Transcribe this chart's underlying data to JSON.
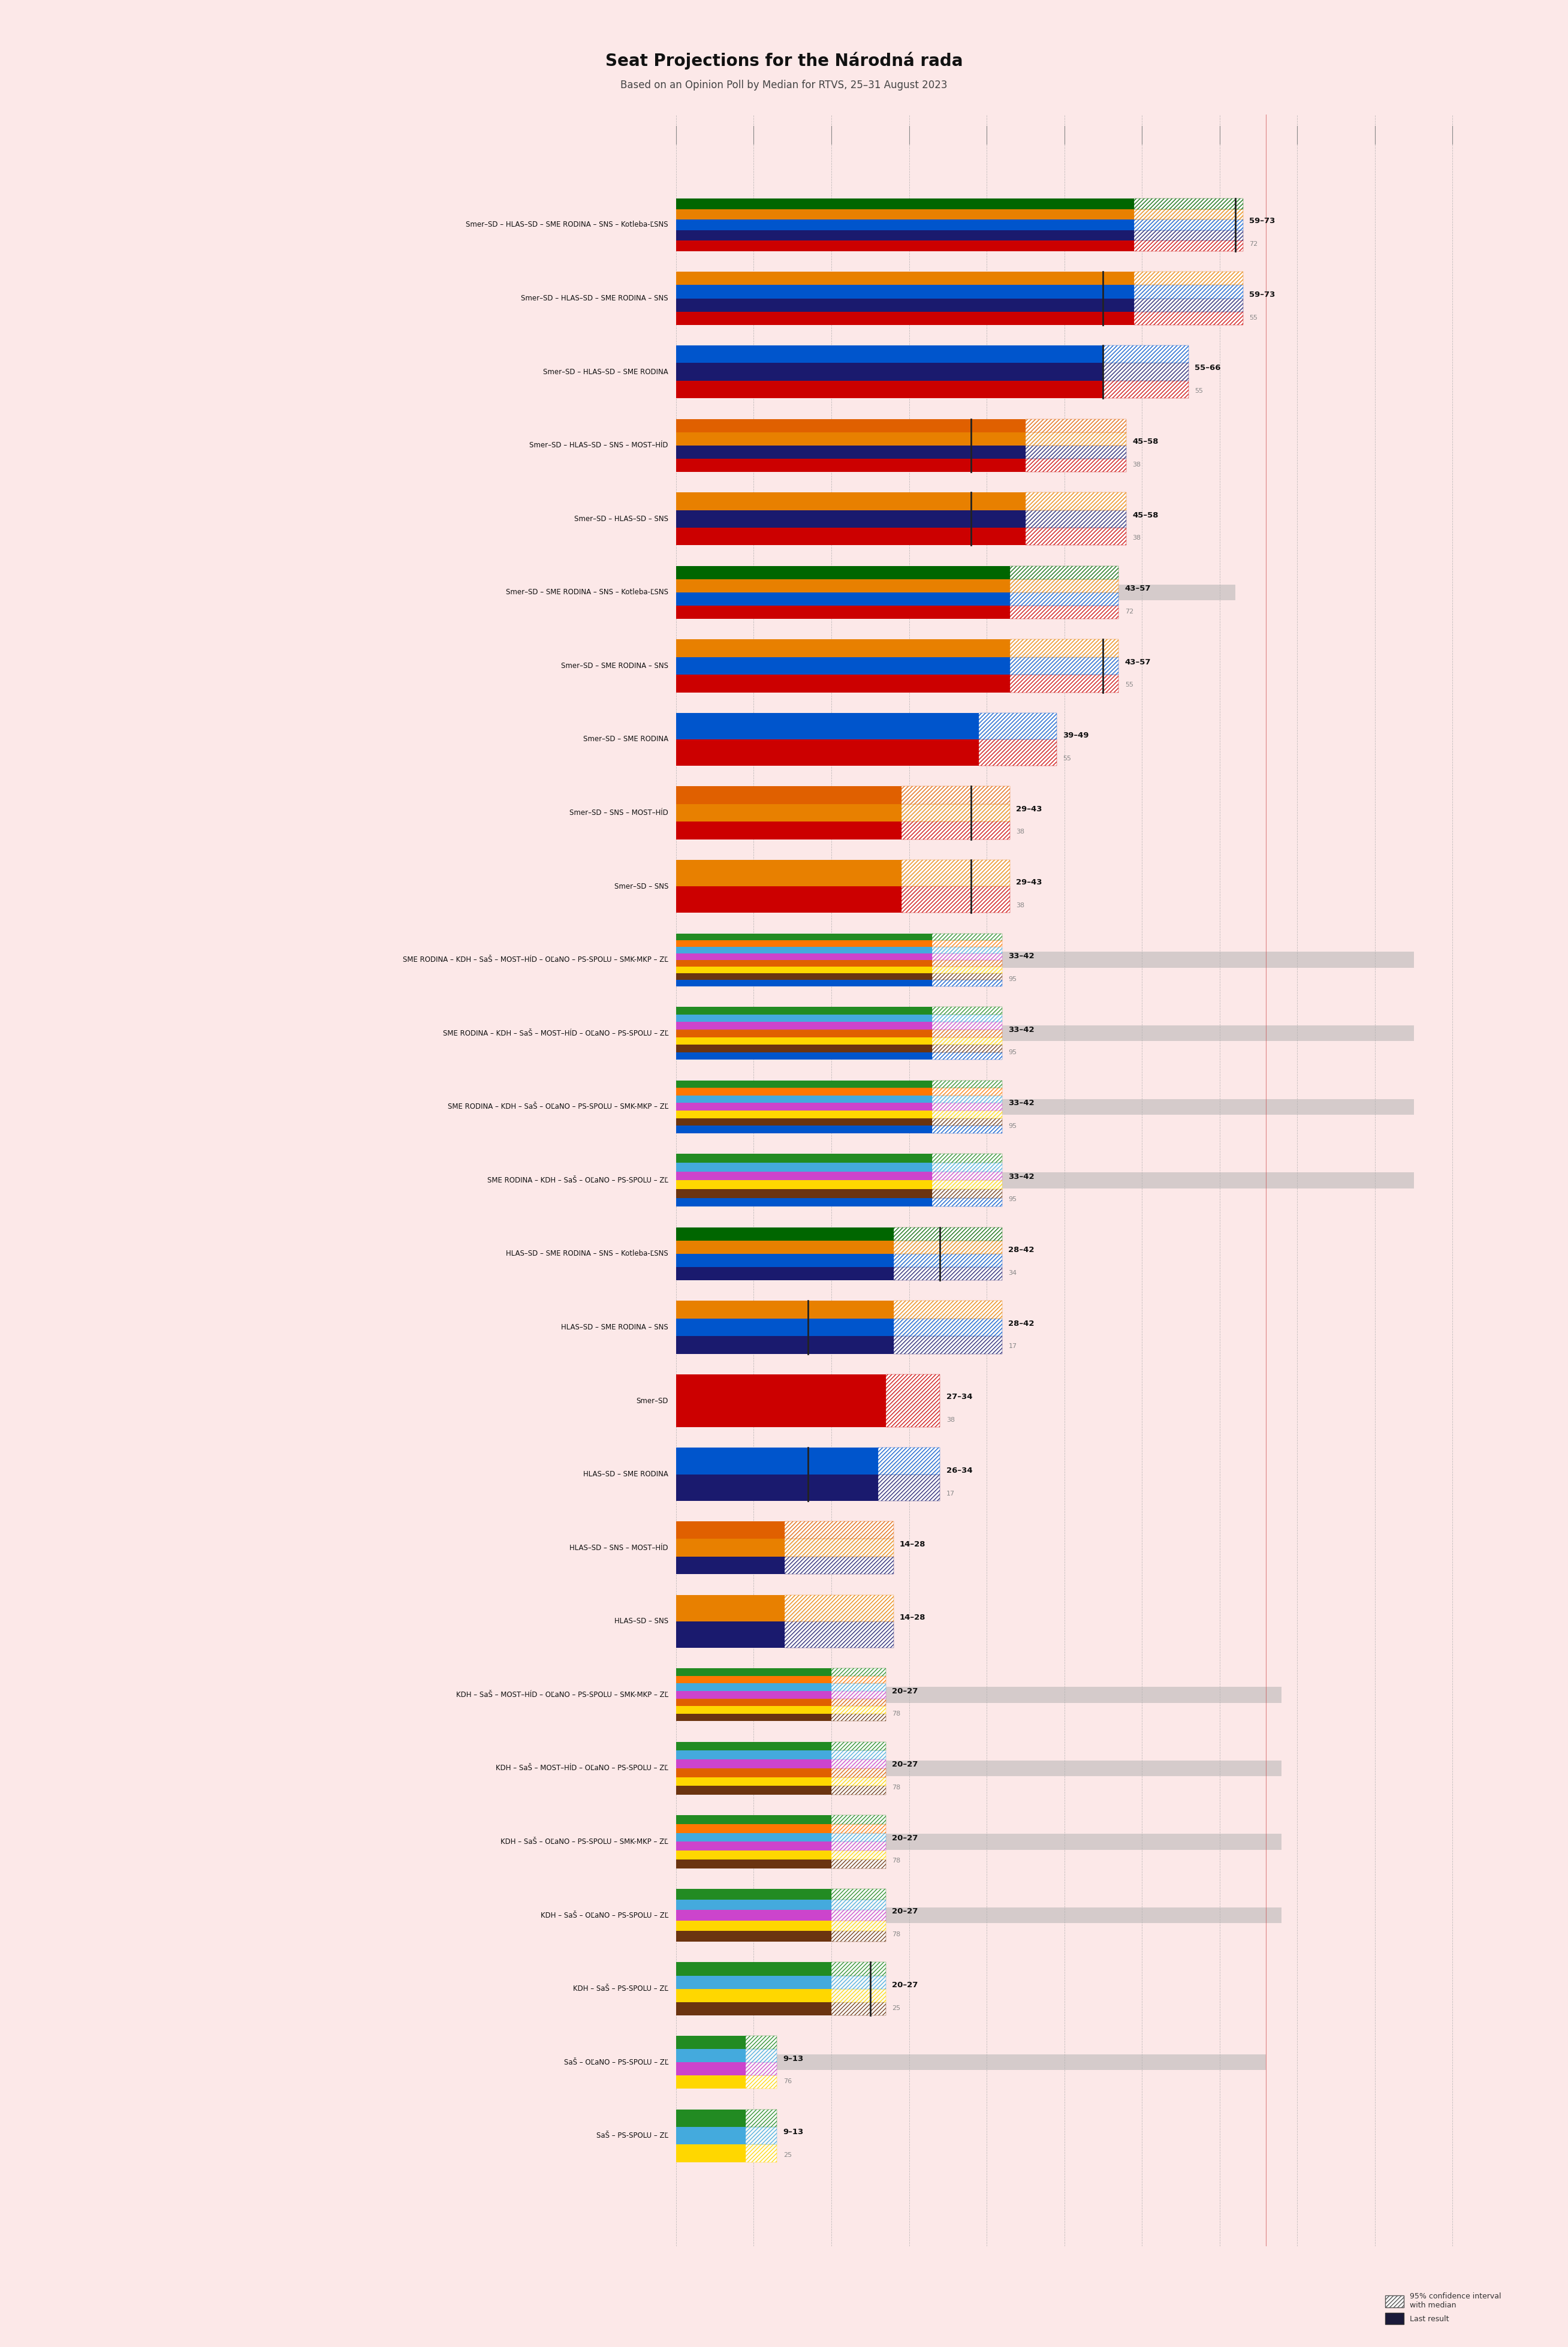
{
  "title": "Seat Projections for the Národná rada",
  "subtitle": "Based on an Opinion Poll by Median for RTVS, 25–31 August 2023",
  "background_color": "#fce8e8",
  "majority_line": 76,
  "x_max": 150,
  "coalitions": [
    {
      "label": "Smer–SD – HLAS–SD – SME RODINA – SNS – Kotleba-ĽSNS",
      "range_low": 59,
      "range_high": 73,
      "median": 72,
      "last_result": 72,
      "colors": [
        "#cc0000",
        "#1a1a6e",
        "#0055cc",
        "#e88000",
        "#006600"
      ],
      "show_last": true
    },
    {
      "label": "Smer–SD – HLAS–SD – SME RODINA – SNS",
      "range_low": 59,
      "range_high": 73,
      "median": 55,
      "last_result": 55,
      "colors": [
        "#cc0000",
        "#1a1a6e",
        "#0055cc",
        "#e88000"
      ],
      "show_last": false
    },
    {
      "label": "Smer–SD – HLAS–SD – SME RODINA",
      "range_low": 55,
      "range_high": 66,
      "median": 55,
      "last_result": 55,
      "colors": [
        "#cc0000",
        "#1a1a6e",
        "#0055cc"
      ],
      "show_last": false
    },
    {
      "label": "Smer–SD – HLAS–SD – SNS – MOST–HÍD",
      "range_low": 45,
      "range_high": 58,
      "median": 38,
      "last_result": 38,
      "colors": [
        "#cc0000",
        "#1a1a6e",
        "#e88000",
        "#e06000"
      ],
      "show_last": false
    },
    {
      "label": "Smer–SD – HLAS–SD – SNS",
      "range_low": 45,
      "range_high": 58,
      "median": 38,
      "last_result": 38,
      "colors": [
        "#cc0000",
        "#1a1a6e",
        "#e88000"
      ],
      "show_last": false
    },
    {
      "label": "Smer–SD – SME RODINA – SNS – Kotleba-ĽSNS",
      "range_low": 43,
      "range_high": 57,
      "median": 72,
      "last_result": 72,
      "colors": [
        "#cc0000",
        "#0055cc",
        "#e88000",
        "#006600"
      ],
      "show_last": true
    },
    {
      "label": "Smer–SD – SME RODINA – SNS",
      "range_low": 43,
      "range_high": 57,
      "median": 55,
      "last_result": 55,
      "colors": [
        "#cc0000",
        "#0055cc",
        "#e88000"
      ],
      "show_last": false
    },
    {
      "label": "Smer–SD – SME RODINA",
      "range_low": 39,
      "range_high": 49,
      "median": 55,
      "last_result": 55,
      "colors": [
        "#cc0000",
        "#0055cc"
      ],
      "show_last": false
    },
    {
      "label": "Smer–SD – SNS – MOST–HÍD",
      "range_low": 29,
      "range_high": 43,
      "median": 38,
      "last_result": 38,
      "colors": [
        "#cc0000",
        "#e88000",
        "#e06000"
      ],
      "show_last": false
    },
    {
      "label": "Smer–SD – SNS",
      "range_low": 29,
      "range_high": 43,
      "median": 38,
      "last_result": 38,
      "colors": [
        "#cc0000",
        "#e88000"
      ],
      "show_last": false
    },
    {
      "label": "SME RODINA – KDH – SaŠ – MOST–HÍD – OĽaNO – PS-SPOLU – SMK-MKP – ZĽ",
      "range_low": 33,
      "range_high": 42,
      "median": 95,
      "last_result": 95,
      "colors": [
        "#0055cc",
        "#6B3410",
        "#ffd700",
        "#e06000",
        "#cc44cc",
        "#44aadd",
        "#ff7700",
        "#228B22"
      ],
      "show_last": true
    },
    {
      "label": "SME RODINA – KDH – SaŠ – MOST–HÍD – OĽaNO – PS-SPOLU – ZĽ",
      "range_low": 33,
      "range_high": 42,
      "median": 95,
      "last_result": 95,
      "colors": [
        "#0055cc",
        "#6B3410",
        "#ffd700",
        "#e06000",
        "#cc44cc",
        "#44aadd",
        "#228B22"
      ],
      "show_last": true
    },
    {
      "label": "SME RODINA – KDH – SaŠ – OĽaNO – PS-SPOLU – SMK-MKP – ZĽ",
      "range_low": 33,
      "range_high": 42,
      "median": 95,
      "last_result": 95,
      "colors": [
        "#0055cc",
        "#6B3410",
        "#ffd700",
        "#cc44cc",
        "#44aadd",
        "#ff7700",
        "#228B22"
      ],
      "show_last": true
    },
    {
      "label": "SME RODINA – KDH – SaŠ – OĽaNO – PS-SPOLU – ZĽ",
      "range_low": 33,
      "range_high": 42,
      "median": 95,
      "last_result": 95,
      "colors": [
        "#0055cc",
        "#6B3410",
        "#ffd700",
        "#cc44cc",
        "#44aadd",
        "#228B22"
      ],
      "show_last": true
    },
    {
      "label": "HLAS–SD – SME RODINA – SNS – Kotleba-ĽSNS",
      "range_low": 28,
      "range_high": 42,
      "median": 34,
      "last_result": 34,
      "colors": [
        "#1a1a6e",
        "#0055cc",
        "#e88000",
        "#006600"
      ],
      "show_last": true
    },
    {
      "label": "HLAS–SD – SME RODINA – SNS",
      "range_low": 28,
      "range_high": 42,
      "median": 17,
      "last_result": 17,
      "colors": [
        "#1a1a6e",
        "#0055cc",
        "#e88000"
      ],
      "show_last": false
    },
    {
      "label": "Smer–SD",
      "range_low": 27,
      "range_high": 34,
      "median": 38,
      "last_result": 38,
      "colors": [
        "#cc0000"
      ],
      "show_last": false
    },
    {
      "label": "HLAS–SD – SME RODINA",
      "range_low": 26,
      "range_high": 34,
      "median": 17,
      "last_result": 17,
      "colors": [
        "#1a1a6e",
        "#0055cc"
      ],
      "show_last": false
    },
    {
      "label": "HLAS–SD – SNS – MOST–HÍD",
      "range_low": 14,
      "range_high": 28,
      "median": 0,
      "last_result": 0,
      "colors": [
        "#1a1a6e",
        "#e88000",
        "#e06000"
      ],
      "show_last": false
    },
    {
      "label": "HLAS–SD – SNS",
      "range_low": 14,
      "range_high": 28,
      "median": 0,
      "last_result": 0,
      "colors": [
        "#1a1a6e",
        "#e88000"
      ],
      "show_last": false
    },
    {
      "label": "KDH – SaŠ – MOST–HÍD – OĽaNO – PS-SPOLU – SMK-MKP – ZĽ",
      "range_low": 20,
      "range_high": 27,
      "median": 78,
      "last_result": 78,
      "colors": [
        "#6B3410",
        "#ffd700",
        "#e06000",
        "#cc44cc",
        "#44aadd",
        "#ff7700",
        "#228B22"
      ],
      "show_last": true
    },
    {
      "label": "KDH – SaŠ – MOST–HÍD – OĽaNO – PS-SPOLU – ZĽ",
      "range_low": 20,
      "range_high": 27,
      "median": 78,
      "last_result": 78,
      "colors": [
        "#6B3410",
        "#ffd700",
        "#e06000",
        "#cc44cc",
        "#44aadd",
        "#228B22"
      ],
      "show_last": true
    },
    {
      "label": "KDH – SaŠ – OĽaNO – PS-SPOLU – SMK-MKP – ZĽ",
      "range_low": 20,
      "range_high": 27,
      "median": 78,
      "last_result": 78,
      "colors": [
        "#6B3410",
        "#ffd700",
        "#cc44cc",
        "#44aadd",
        "#ff7700",
        "#228B22"
      ],
      "show_last": true
    },
    {
      "label": "KDH – SaŠ – OĽaNO – PS-SPOLU – ZĽ",
      "range_low": 20,
      "range_high": 27,
      "median": 78,
      "last_result": 78,
      "colors": [
        "#6B3410",
        "#ffd700",
        "#cc44cc",
        "#44aadd",
        "#228B22"
      ],
      "show_last": true
    },
    {
      "label": "KDH – SaŠ – PS-SPOLU – ZĽ",
      "range_low": 20,
      "range_high": 27,
      "median": 25,
      "last_result": 25,
      "colors": [
        "#6B3410",
        "#ffd700",
        "#44aadd",
        "#228B22"
      ],
      "show_last": false
    },
    {
      "label": "SaŠ – OĽaNO – PS-SPOLU – ZĽ",
      "range_low": 9,
      "range_high": 13,
      "median": 76,
      "last_result": 76,
      "colors": [
        "#ffd700",
        "#cc44cc",
        "#44aadd",
        "#228B22"
      ],
      "show_last": true
    },
    {
      "label": "SaŠ – PS-SPOLU – ZĽ",
      "range_low": 9,
      "range_high": 13,
      "median": 25,
      "last_result": 25,
      "colors": [
        "#ffd700",
        "#44aadd",
        "#228B22"
      ],
      "show_last": false
    }
  ]
}
